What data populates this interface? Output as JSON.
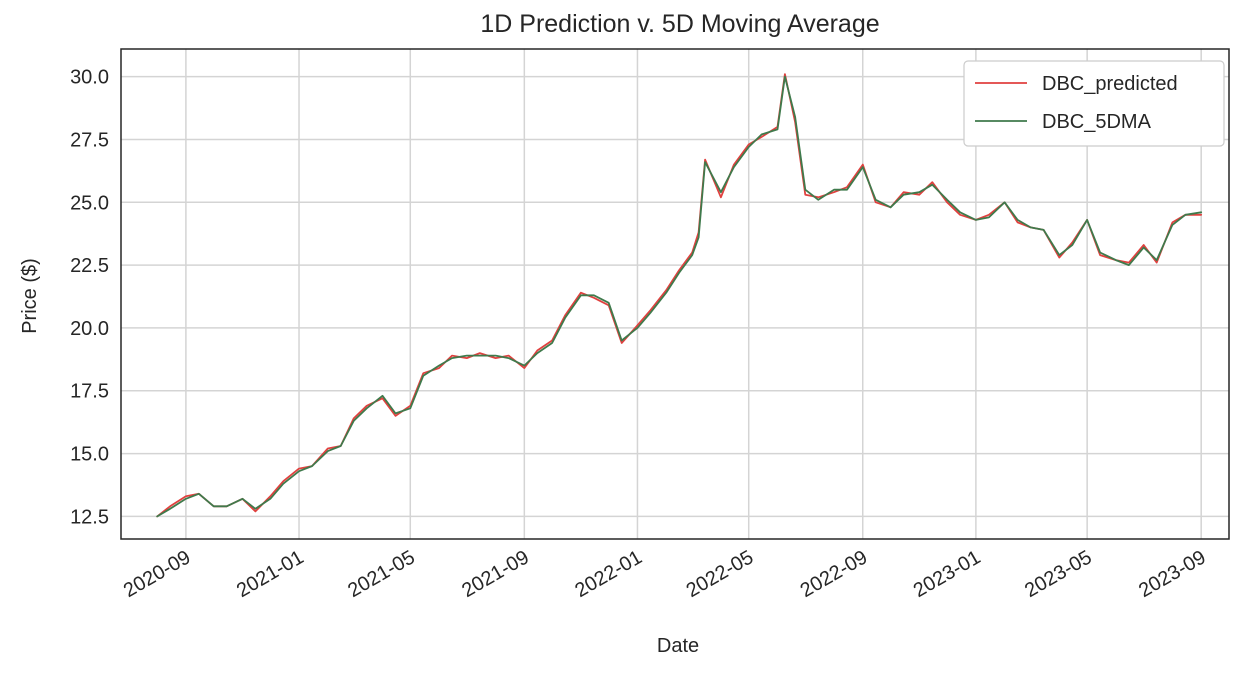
{
  "chart_data": {
    "type": "line",
    "title": "1D Prediction v. 5D Moving Average",
    "xlabel": "Date",
    "ylabel": "Price ($)",
    "x_ticks": [
      "2020-09",
      "2021-01",
      "2021-05",
      "2021-09",
      "2022-01",
      "2022-05",
      "2022-09",
      "2023-01",
      "2023-05",
      "2023-09"
    ],
    "y_ticks": [
      "12.5",
      "15.0",
      "17.5",
      "20.0",
      "22.5",
      "25.0",
      "27.5",
      "30.0"
    ],
    "xlim": [
      "2020-06-23",
      "2023-10-01"
    ],
    "ylim": [
      11.6,
      31.1
    ],
    "grid": true,
    "legend_position": "top-right",
    "colors": {
      "DBC_predicted": "#e0413f",
      "DBC_5DMA": "#3f7a4c"
    },
    "series": [
      {
        "name": "DBC_predicted",
        "x": [
          "2020-08-01",
          "2020-08-15",
          "2020-09-01",
          "2020-09-15",
          "2020-10-01",
          "2020-10-15",
          "2020-11-01",
          "2020-11-15",
          "2020-12-01",
          "2020-12-15",
          "2021-01-01",
          "2021-01-15",
          "2021-02-01",
          "2021-02-15",
          "2021-03-01",
          "2021-03-15",
          "2021-04-01",
          "2021-04-15",
          "2021-05-01",
          "2021-05-15",
          "2021-06-01",
          "2021-06-15",
          "2021-07-01",
          "2021-07-15",
          "2021-08-01",
          "2021-08-15",
          "2021-09-01",
          "2021-09-15",
          "2021-10-01",
          "2021-10-15",
          "2021-11-01",
          "2021-11-15",
          "2021-12-01",
          "2021-12-15",
          "2022-01-01",
          "2022-01-15",
          "2022-02-01",
          "2022-02-15",
          "2022-03-01",
          "2022-03-08",
          "2022-03-15",
          "2022-04-01",
          "2022-04-15",
          "2022-05-01",
          "2022-05-15",
          "2022-06-01",
          "2022-06-09",
          "2022-06-20",
          "2022-07-01",
          "2022-07-15",
          "2022-08-01",
          "2022-08-15",
          "2022-09-01",
          "2022-09-15",
          "2022-10-01",
          "2022-10-15",
          "2022-11-01",
          "2022-11-15",
          "2022-12-01",
          "2022-12-15",
          "2023-01-01",
          "2023-01-15",
          "2023-02-01",
          "2023-02-15",
          "2023-03-01",
          "2023-03-15",
          "2023-04-01",
          "2023-04-15",
          "2023-05-01",
          "2023-05-15",
          "2023-06-01",
          "2023-06-15",
          "2023-07-01",
          "2023-07-15",
          "2023-08-01",
          "2023-08-15",
          "2023-09-01"
        ],
        "y": [
          12.5,
          12.9,
          13.3,
          13.4,
          12.9,
          12.9,
          13.2,
          12.7,
          13.3,
          13.9,
          14.4,
          14.5,
          15.2,
          15.3,
          16.4,
          16.9,
          17.2,
          16.5,
          16.9,
          18.2,
          18.4,
          18.9,
          18.8,
          19.0,
          18.8,
          18.9,
          18.4,
          19.1,
          19.5,
          20.5,
          21.4,
          21.2,
          20.9,
          19.4,
          20.1,
          20.7,
          21.5,
          22.3,
          23.0,
          23.8,
          26.7,
          25.2,
          26.5,
          27.3,
          27.6,
          28.0,
          30.1,
          28.2,
          25.3,
          25.2,
          25.4,
          25.6,
          26.5,
          25.0,
          24.8,
          25.4,
          25.3,
          25.8,
          25.0,
          24.5,
          24.3,
          24.5,
          25.0,
          24.2,
          24.0,
          23.9,
          22.8,
          23.4,
          24.3,
          22.9,
          22.7,
          22.6,
          23.3,
          22.6,
          24.2,
          24.5,
          24.5
        ]
      },
      {
        "name": "DBC_5DMA",
        "x": [
          "2020-08-01",
          "2020-08-15",
          "2020-09-01",
          "2020-09-15",
          "2020-10-01",
          "2020-10-15",
          "2020-11-01",
          "2020-11-15",
          "2020-12-01",
          "2020-12-15",
          "2021-01-01",
          "2021-01-15",
          "2021-02-01",
          "2021-02-15",
          "2021-03-01",
          "2021-03-15",
          "2021-04-01",
          "2021-04-15",
          "2021-05-01",
          "2021-05-15",
          "2021-06-01",
          "2021-06-15",
          "2021-07-01",
          "2021-07-15",
          "2021-08-01",
          "2021-08-15",
          "2021-09-01",
          "2021-09-15",
          "2021-10-01",
          "2021-10-15",
          "2021-11-01",
          "2021-11-15",
          "2021-12-01",
          "2021-12-15",
          "2022-01-01",
          "2022-01-15",
          "2022-02-01",
          "2022-02-15",
          "2022-03-01",
          "2022-03-08",
          "2022-03-15",
          "2022-04-01",
          "2022-04-15",
          "2022-05-01",
          "2022-05-15",
          "2022-06-01",
          "2022-06-09",
          "2022-06-20",
          "2022-07-01",
          "2022-07-15",
          "2022-08-01",
          "2022-08-15",
          "2022-09-01",
          "2022-09-15",
          "2022-10-01",
          "2022-10-15",
          "2022-11-01",
          "2022-11-15",
          "2022-12-01",
          "2022-12-15",
          "2023-01-01",
          "2023-01-15",
          "2023-02-01",
          "2023-02-15",
          "2023-03-01",
          "2023-03-15",
          "2023-04-01",
          "2023-04-15",
          "2023-05-01",
          "2023-05-15",
          "2023-06-01",
          "2023-06-15",
          "2023-07-01",
          "2023-07-15",
          "2023-08-01",
          "2023-08-15",
          "2023-09-01"
        ],
        "y": [
          12.5,
          12.8,
          13.2,
          13.4,
          12.9,
          12.9,
          13.2,
          12.8,
          13.2,
          13.8,
          14.3,
          14.5,
          15.1,
          15.3,
          16.3,
          16.8,
          17.3,
          16.6,
          16.8,
          18.1,
          18.5,
          18.8,
          18.9,
          18.9,
          18.9,
          18.8,
          18.5,
          19.0,
          19.4,
          20.4,
          21.3,
          21.3,
          21.0,
          19.5,
          20.0,
          20.6,
          21.4,
          22.2,
          22.9,
          23.6,
          26.6,
          25.4,
          26.4,
          27.2,
          27.7,
          27.9,
          30.0,
          28.4,
          25.5,
          25.1,
          25.5,
          25.5,
          26.4,
          25.1,
          24.8,
          25.3,
          25.4,
          25.7,
          25.1,
          24.6,
          24.3,
          24.4,
          25.0,
          24.3,
          24.0,
          23.9,
          22.9,
          23.3,
          24.3,
          23.0,
          22.7,
          22.5,
          23.2,
          22.7,
          24.1,
          24.5,
          24.6
        ]
      }
    ]
  }
}
